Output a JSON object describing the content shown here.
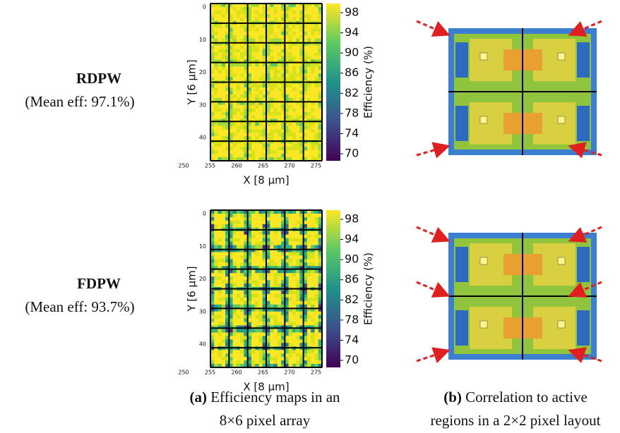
{
  "rows": [
    {
      "label": "RDPW",
      "mean": "(Mean eff: 97.1%)"
    },
    {
      "label": "FDPW",
      "mean": "(Mean eff: 93.7%)"
    }
  ],
  "heatmap": {
    "xlabel": "X [8 μm]",
    "ylabel": "Y [6 μm]",
    "xticks": [
      "250",
      "255",
      "260",
      "265",
      "270",
      "275"
    ],
    "yticks": [
      "0",
      "10",
      "20",
      "30",
      "40"
    ],
    "colorbar": {
      "label": "Efficiency (%)",
      "ticks": [
        98,
        94,
        90,
        86,
        82,
        78,
        74,
        70
      ]
    }
  },
  "captions": [
    {
      "tag": "(a)",
      "line1": "Efficiency maps in an",
      "line2": "8×6 pixel array"
    },
    {
      "tag": "(b)",
      "line1": "Correlation to active",
      "line2": "regions in a 2×2 pixel layout"
    }
  ]
}
